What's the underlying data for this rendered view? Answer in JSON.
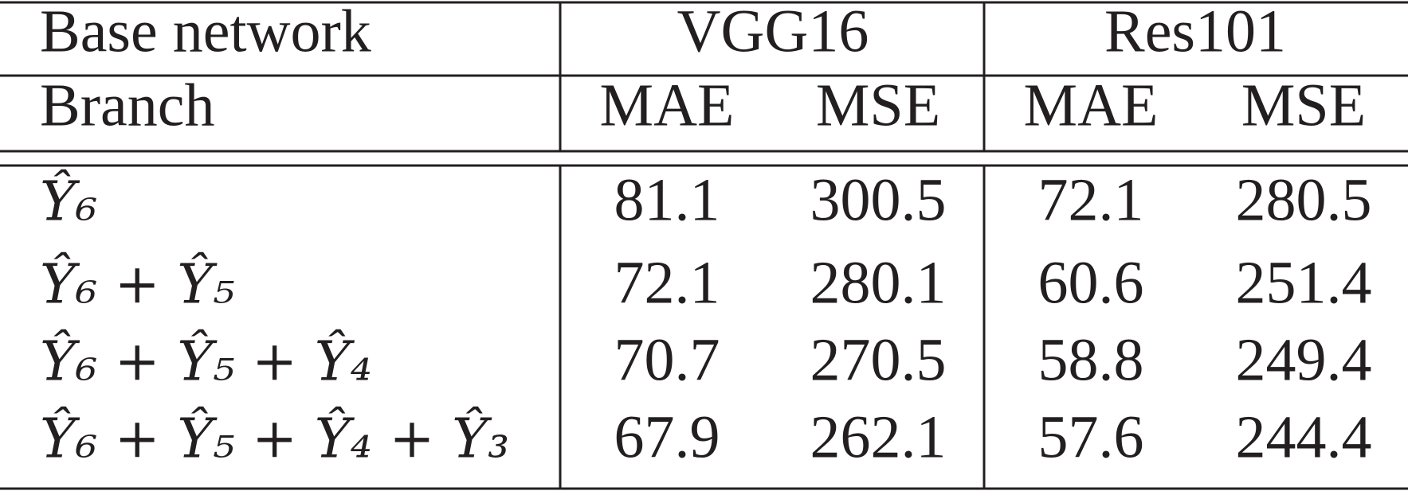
{
  "table": {
    "header": {
      "corner": "Base network",
      "groups": [
        "VGG16",
        "Res101"
      ]
    },
    "subheader": {
      "corner": "Branch",
      "columns": [
        "MAE",
        "MSE",
        "MAE",
        "MSE"
      ]
    },
    "rows": [
      {
        "label": "Ŷ₆",
        "values": [
          81.1,
          300.5,
          72.1,
          280.5
        ]
      },
      {
        "label": "Ŷ₆ + Ŷ₅",
        "values": [
          72.1,
          280.1,
          60.6,
          251.4
        ]
      },
      {
        "label": "Ŷ₆ + Ŷ₅ + Ŷ₄",
        "values": [
          70.7,
          270.5,
          58.8,
          249.4
        ]
      },
      {
        "label": "Ŷ₆ + Ŷ₅ + Ŷ₄ + Ŷ₃",
        "values": [
          67.9,
          262.1,
          57.6,
          244.4
        ]
      }
    ]
  }
}
